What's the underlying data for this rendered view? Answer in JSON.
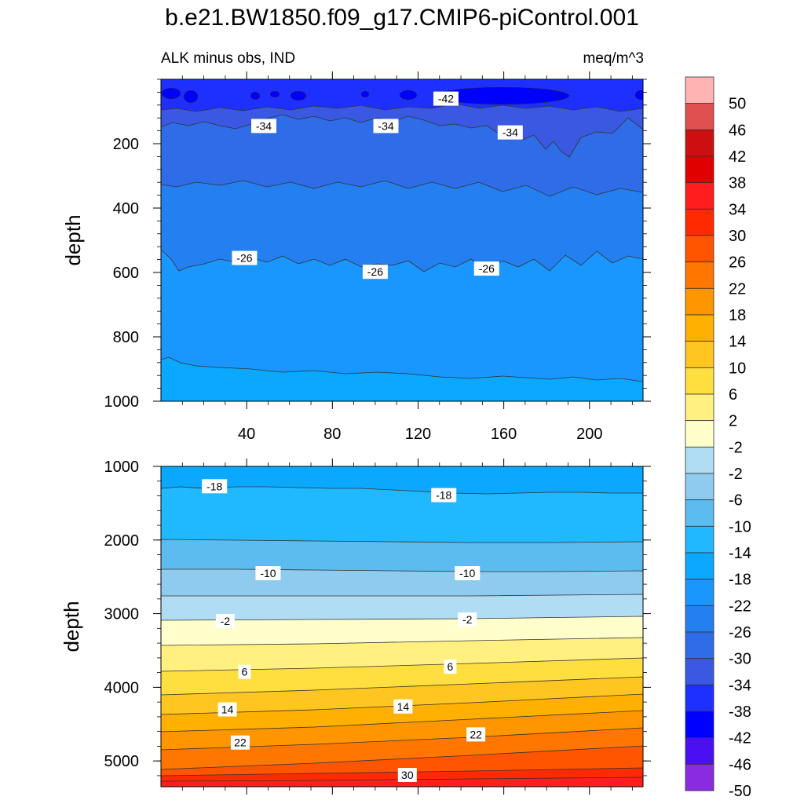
{
  "title": "b.e21.BW1850.f09_g17.CMIP6-piControl.001",
  "subtitle_left": "ALK minus obs, IND",
  "subtitle_right": "meq/m^3",
  "chart_data": [
    {
      "type": "contour",
      "panel": "upper",
      "xlabel": "",
      "ylabel": "depth",
      "xlim": [
        0,
        225
      ],
      "ylim": [
        0,
        1000
      ],
      "y_reversed": true,
      "x_ticks": [
        40,
        80,
        120,
        160,
        200
      ],
      "y_ticks": [
        200,
        400,
        600,
        800,
        1000
      ],
      "contour_labels": [
        {
          "text": "-42",
          "x": 133,
          "y": 60
        },
        {
          "text": "-34",
          "x": 48,
          "y": 145
        },
        {
          "text": "-34",
          "x": 105,
          "y": 145
        },
        {
          "text": "-34",
          "x": 163,
          "y": 165
        },
        {
          "text": "-26",
          "x": 39,
          "y": 555
        },
        {
          "text": "-26",
          "x": 100,
          "y": 598
        },
        {
          "text": "-26",
          "x": 152,
          "y": 588
        }
      ]
    },
    {
      "type": "contour",
      "panel": "lower",
      "xlabel": "",
      "ylabel": "depth",
      "xlim": [
        0,
        225
      ],
      "ylim": [
        1000,
        5350
      ],
      "y_reversed": true,
      "y_ticks": [
        1000,
        2000,
        3000,
        4000,
        5000
      ],
      "contour_labels": [
        {
          "text": "-18",
          "x": 25,
          "y": 1270
        },
        {
          "text": "-18",
          "x": 132,
          "y": 1390
        },
        {
          "text": "-10",
          "x": 50,
          "y": 2450
        },
        {
          "text": "-10",
          "x": 143,
          "y": 2450
        },
        {
          "text": "-2",
          "x": 30,
          "y": 3100
        },
        {
          "text": "-2",
          "x": 143,
          "y": 3080
        },
        {
          "text": "6",
          "x": 39,
          "y": 3790
        },
        {
          "text": "6",
          "x": 135,
          "y": 3720
        },
        {
          "text": "14",
          "x": 31,
          "y": 4300
        },
        {
          "text": "14",
          "x": 113,
          "y": 4260
        },
        {
          "text": "22",
          "x": 37,
          "y": 4750
        },
        {
          "text": "22",
          "x": 147,
          "y": 4640
        },
        {
          "text": "30",
          "x": 115,
          "y": 5190
        }
      ]
    }
  ],
  "colorbar": {
    "labels": [
      "50",
      "46",
      "42",
      "38",
      "34",
      "30",
      "26",
      "22",
      "18",
      "14",
      "10",
      "6",
      "2",
      "-2",
      "-2",
      "-6",
      "-10",
      "-14",
      "-18",
      "-22",
      "-26",
      "-30",
      "-34",
      "-38",
      "-42",
      "-46",
      "-50"
    ],
    "colors": [
      "#ffb3b3",
      "#e05050",
      "#cc1010",
      "#e00000",
      "#ff1e1e",
      "#ff2a00",
      "#ff5500",
      "#ff7700",
      "#ff9600",
      "#ffb000",
      "#ffc520",
      "#ffdf40",
      "#fff080",
      "#ffffcc",
      "#b0dcf4",
      "#8ecbee",
      "#5cbcf0",
      "#20b8ff",
      "#0aa8ff",
      "#1a96ff",
      "#2480f0",
      "#2f6ce8",
      "#3a58e2",
      "#1e30ff",
      "#0000ff",
      "#4a10f2",
      "#8a2be2"
    ]
  }
}
